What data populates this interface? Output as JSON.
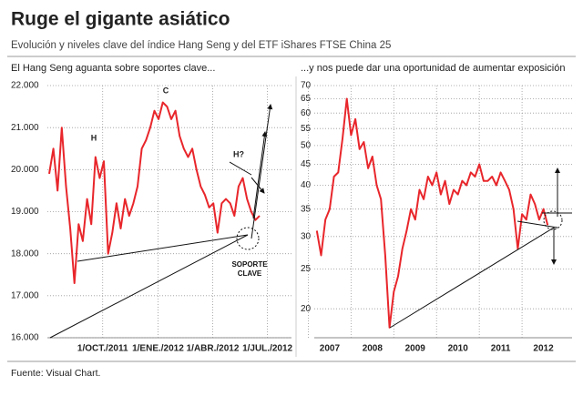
{
  "title": "Ruge el gigante asiático",
  "subtitle": "Evolución y niveles clave del índice Hang Seng y del ETF iShares FTSE China 25",
  "source": "Fuente: Visual Chart.",
  "chart_data": [
    {
      "type": "line",
      "title": "El Hang Seng aguanta sobre soportes clave...",
      "color": "#e8262b",
      "grid": true,
      "x": [
        "2011-07-04",
        "2011-07-11",
        "2011-07-18",
        "2011-07-25",
        "2011-08-01",
        "2011-08-08",
        "2011-08-15",
        "2011-08-22",
        "2011-08-29",
        "2011-09-05",
        "2011-09-12",
        "2011-09-19",
        "2011-09-26",
        "2011-10-03",
        "2011-10-10",
        "2011-10-17",
        "2011-10-24",
        "2011-10-31",
        "2011-11-07",
        "2011-11-14",
        "2011-11-21",
        "2011-11-28",
        "2011-12-05",
        "2011-12-12",
        "2011-12-19",
        "2011-12-26",
        "2012-01-02",
        "2012-01-09",
        "2012-01-16",
        "2012-01-23",
        "2012-01-30",
        "2012-02-06",
        "2012-02-13",
        "2012-02-20",
        "2012-02-27",
        "2012-03-05",
        "2012-03-12",
        "2012-03-19",
        "2012-03-26",
        "2012-04-02",
        "2012-04-09",
        "2012-04-16",
        "2012-04-23",
        "2012-04-30",
        "2012-05-07",
        "2012-05-14",
        "2012-05-21",
        "2012-05-28",
        "2012-06-04",
        "2012-06-11",
        "2012-06-18"
      ],
      "values": [
        19900,
        20500,
        19500,
        21000,
        19600,
        18600,
        17300,
        18700,
        18300,
        19300,
        18700,
        20300,
        19800,
        20200,
        18000,
        18500,
        19200,
        18600,
        19300,
        18900,
        19200,
        19600,
        20500,
        20700,
        21000,
        21400,
        21200,
        21600,
        21500,
        21200,
        21400,
        20800,
        20500,
        20300,
        20500,
        20000,
        19600,
        19400,
        19100,
        19200,
        18500,
        19200,
        19300,
        19200,
        18900,
        19600,
        19800,
        19300,
        19000,
        18800,
        18900
      ],
      "xlim": [
        "2011-07-01",
        "2012-08-10"
      ],
      "xticks": [
        {
          "value": "2011-10-01",
          "label": "1/OCT./2011"
        },
        {
          "value": "2012-01-01",
          "label": "1/ENE./2012"
        },
        {
          "value": "2012-04-01",
          "label": "1/ABR./2012"
        },
        {
          "value": "2012-07-01",
          "label": "1/JUL./2012"
        }
      ],
      "ylim": [
        16000,
        22000
      ],
      "yticks": [
        {
          "value": 16000,
          "label": "16.000"
        },
        {
          "value": 17000,
          "label": "17.000"
        },
        {
          "value": 18000,
          "label": "18.000"
        },
        {
          "value": 19000,
          "label": "19.000"
        },
        {
          "value": 20000,
          "label": "20.000"
        },
        {
          "value": 21000,
          "label": "21.000"
        },
        {
          "value": 22000,
          "label": "22.000"
        }
      ],
      "annotations": [
        "H",
        "C",
        "H?",
        "SOPORTE CLAVE"
      ]
    },
    {
      "type": "line",
      "title": "...y nos puede dar una oportunidad de aumentar exposición",
      "color": "#e8262b",
      "grid": true,
      "log_scale": true,
      "x": [
        2007.2,
        2007.3,
        2007.4,
        2007.5,
        2007.6,
        2007.7,
        2007.8,
        2007.9,
        2008.0,
        2008.1,
        2008.2,
        2008.3,
        2008.4,
        2008.5,
        2008.6,
        2008.7,
        2008.8,
        2008.9,
        2009.0,
        2009.1,
        2009.2,
        2009.3,
        2009.4,
        2009.5,
        2009.6,
        2009.7,
        2009.8,
        2009.9,
        2010.0,
        2010.1,
        2010.2,
        2010.3,
        2010.4,
        2010.5,
        2010.6,
        2010.7,
        2010.8,
        2010.9,
        2011.0,
        2011.1,
        2011.2,
        2011.3,
        2011.4,
        2011.5,
        2011.6,
        2011.7,
        2011.8,
        2011.9,
        2012.0,
        2012.1,
        2012.2,
        2012.3,
        2012.4,
        2012.5,
        2012.6
      ],
      "values": [
        31,
        27,
        33,
        35,
        42,
        43,
        52,
        65,
        53,
        58,
        49,
        51,
        44,
        47,
        40,
        37,
        27,
        18,
        22,
        24,
        28,
        31,
        35,
        33,
        39,
        37,
        42,
        40,
        43,
        38,
        41,
        36,
        39,
        38,
        41,
        40,
        43,
        42,
        45,
        41,
        41,
        42,
        40,
        43,
        41,
        39,
        35,
        28,
        34,
        33,
        38,
        36,
        33,
        35,
        32
      ],
      "xlim": [
        2007.14,
        2013.17
      ],
      "xticks": [
        2007,
        2008,
        2009,
        2010,
        2011,
        2012
      ],
      "ylim": [
        17,
        70
      ],
      "yticks": [
        20,
        25,
        30,
        35,
        40,
        45,
        50,
        55,
        60,
        65,
        70
      ]
    }
  ]
}
